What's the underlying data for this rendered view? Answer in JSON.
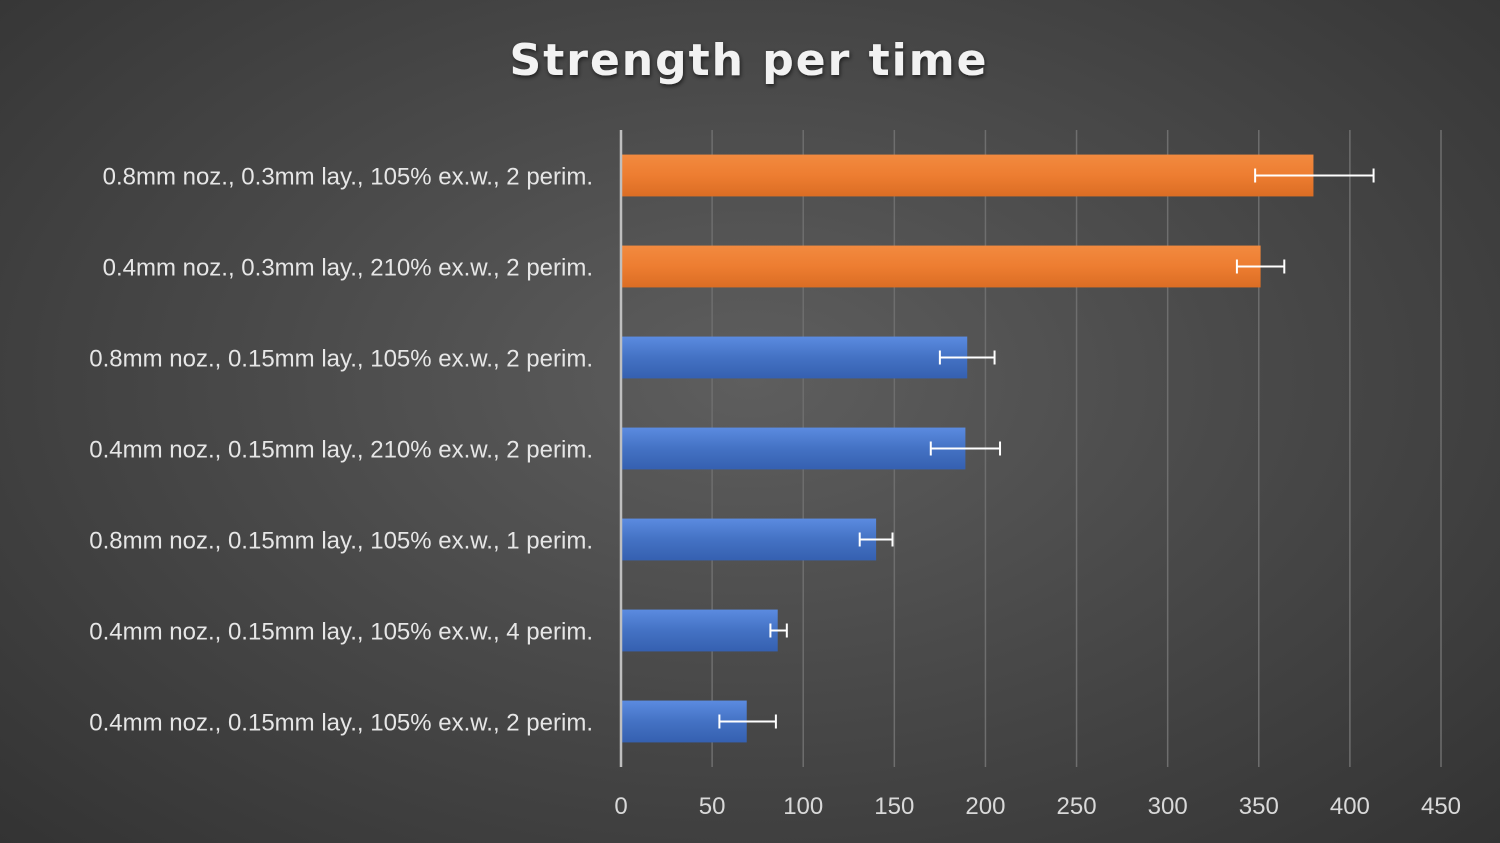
{
  "chart_data": {
    "type": "bar",
    "orientation": "horizontal",
    "title": "Strength per time",
    "xlabel": "",
    "ylabel": "",
    "xlim": [
      0,
      450
    ],
    "x_ticks": [
      0,
      50,
      100,
      150,
      200,
      250,
      300,
      350,
      400,
      450
    ],
    "grid": true,
    "legend": "none",
    "categories": [
      "0.8mm noz., 0.3mm lay., 105% ex.w., 2 perim.",
      "0.4mm noz., 0.3mm lay., 210% ex.w., 2 perim.",
      "0.8mm noz., 0.15mm lay., 105% ex.w., 2 perim.",
      "0.4mm noz., 0.15mm lay., 210% ex.w., 2 perim.",
      "0.8mm noz., 0.15mm lay., 105% ex.w., 1 perim.",
      "0.4mm noz., 0.15mm lay., 105% ex.w., 4 perim.",
      "0.4mm noz., 0.15mm lay., 105% ex.w., 2 perim."
    ],
    "values": [
      380,
      351,
      190,
      189,
      140,
      86,
      69
    ],
    "error_low": [
      348,
      338,
      175,
      170,
      131,
      82,
      54
    ],
    "error_high": [
      413,
      364,
      205,
      208,
      149,
      91,
      85
    ],
    "bar_colors": [
      "#ed7d31",
      "#ed7d31",
      "#4472c4",
      "#4472c4",
      "#4472c4",
      "#4472c4",
      "#4472c4"
    ]
  }
}
